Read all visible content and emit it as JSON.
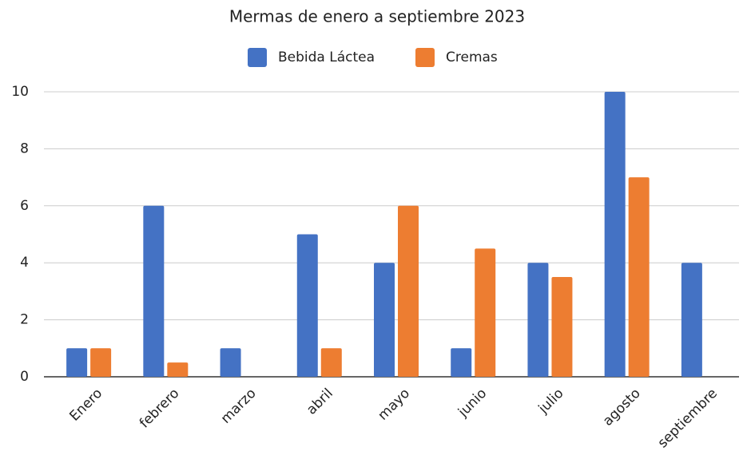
{
  "chart_data": {
    "type": "bar",
    "title": "Mermas de enero a septiembre 2023",
    "categories": [
      "Enero",
      "febrero",
      "marzo",
      "abril",
      "mayo",
      "junio",
      "julio",
      "agosto",
      "septiembre"
    ],
    "series": [
      {
        "name": "Bebida Láctea",
        "color": "#4472c4",
        "values": [
          1,
          6,
          1,
          5,
          4,
          1,
          4,
          10,
          4
        ]
      },
      {
        "name": "Cremas",
        "color": "#ed7d31",
        "values": [
          1,
          0.5,
          0,
          1,
          6,
          4.5,
          3.5,
          7,
          0
        ]
      }
    ],
    "ylim": [
      0,
      10
    ],
    "yticks": [
      0,
      2,
      4,
      6,
      8,
      10
    ],
    "grid": true,
    "legend": "top"
  }
}
